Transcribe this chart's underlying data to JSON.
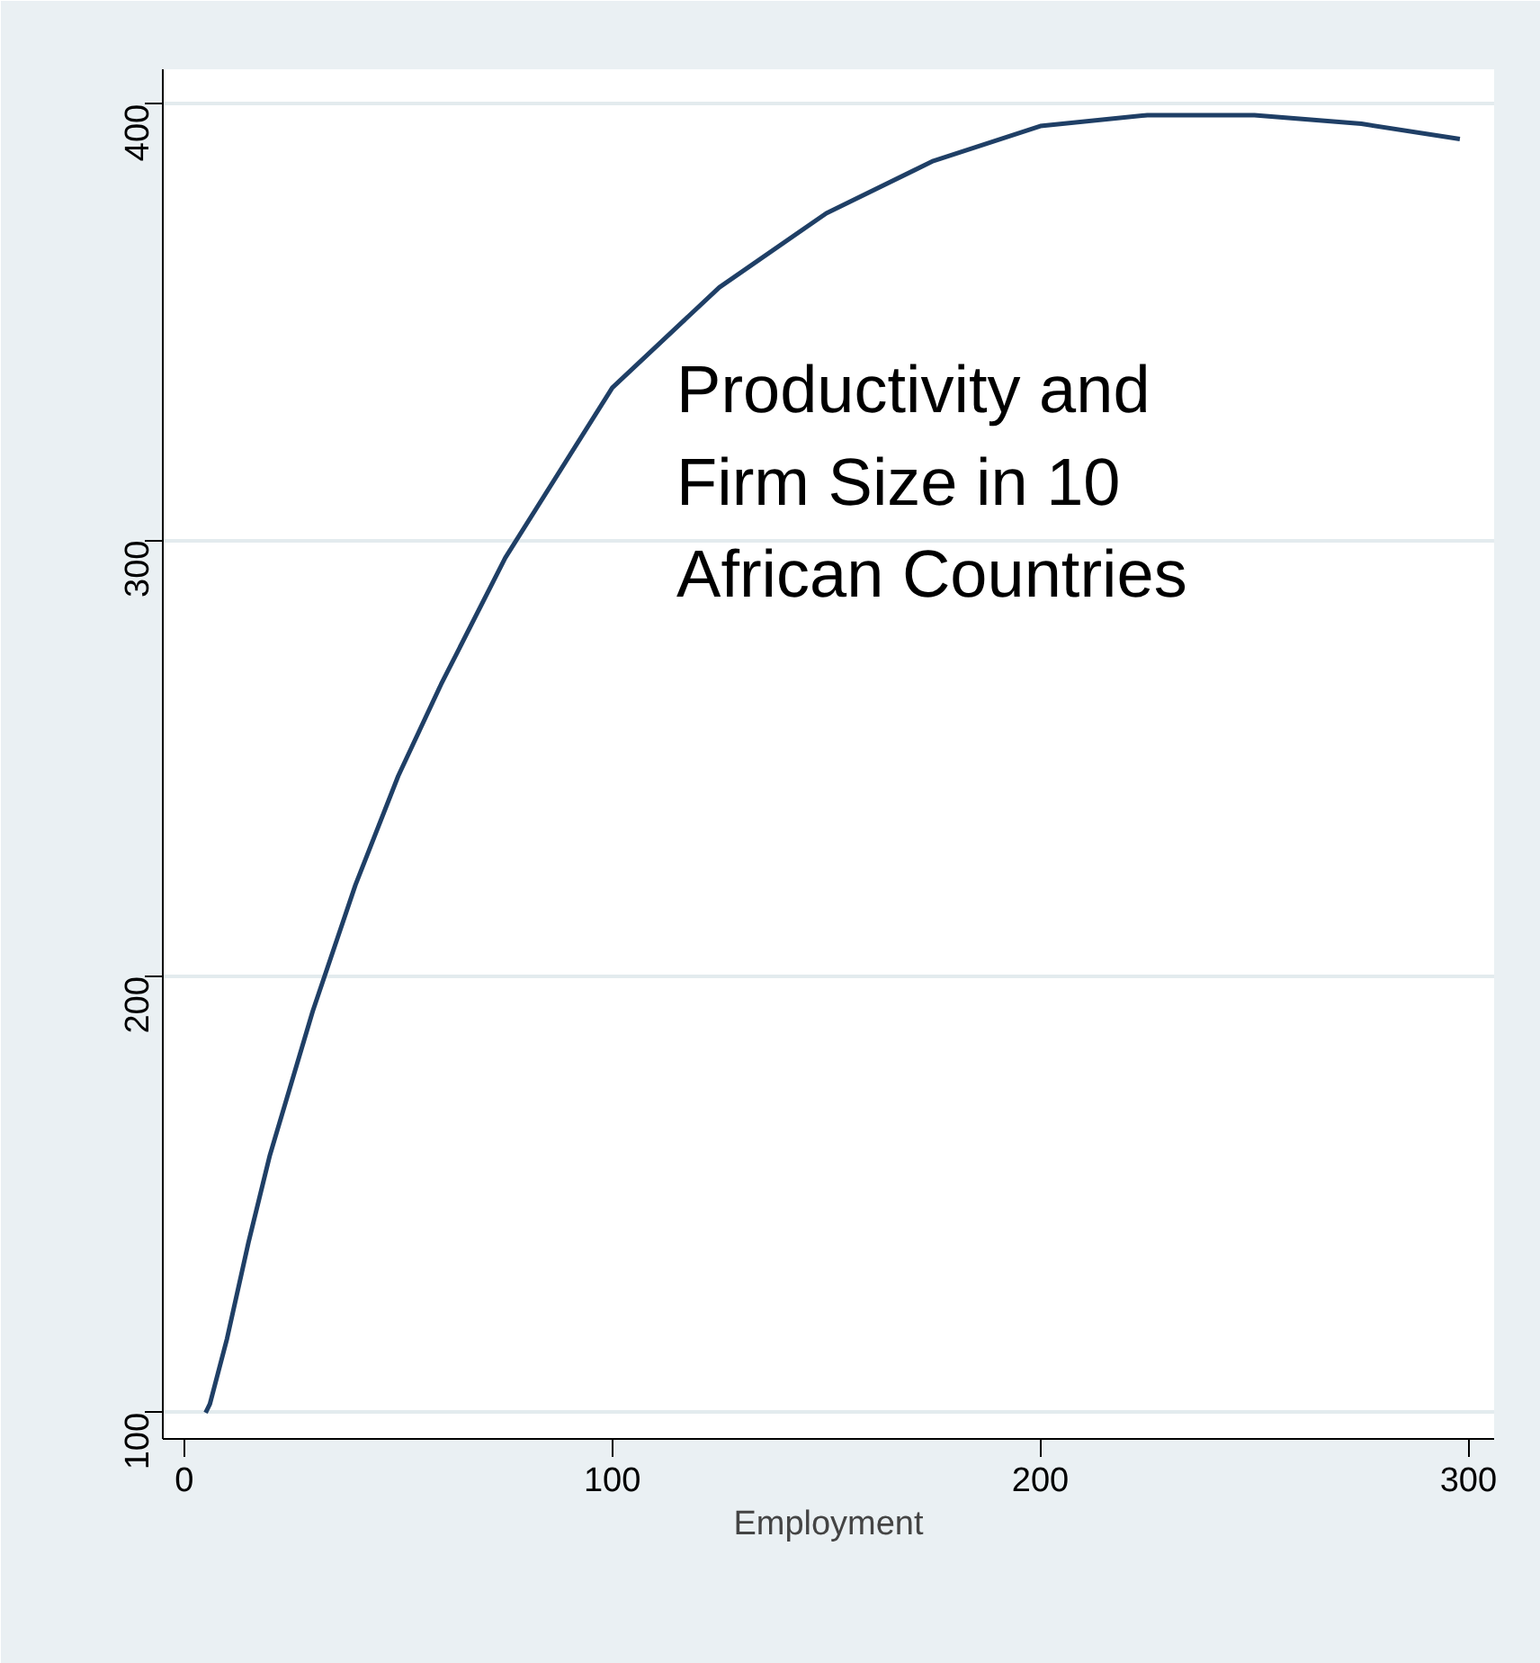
{
  "chart_data": {
    "type": "line",
    "xlabel": "Employment",
    "annotations": [
      "Productivity and\nFirm Size in 10\nAfrican Countries"
    ],
    "x": [
      5,
      6,
      10,
      15,
      20,
      30,
      40,
      50,
      60,
      75,
      100,
      125,
      150,
      175,
      200,
      225,
      250,
      275,
      298
    ],
    "series": [
      {
        "color": "#1f3f66",
        "values": [
          100,
          102,
          117,
          139,
          159,
          192,
          221,
          246,
          267,
          296,
          335,
          358,
          375,
          387,
          395,
          397.5,
          397.5,
          395.5,
          392
        ]
      }
    ],
    "xlim": [
      -5,
      306
    ],
    "ylim": [
      94,
      408
    ],
    "xticks": [
      0,
      100,
      200,
      300
    ],
    "yticks": [
      100,
      200,
      300,
      400
    ],
    "grid": "y",
    "marker": "none",
    "line_style": "solid"
  }
}
